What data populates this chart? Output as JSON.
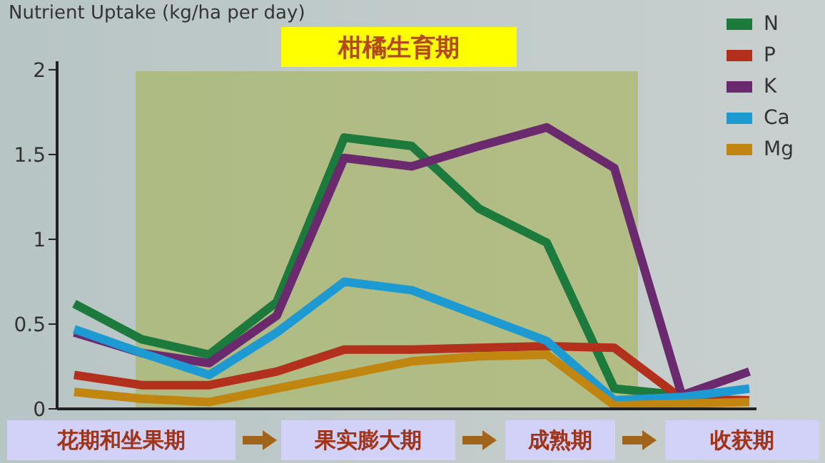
{
  "chart_data": {
    "type": "line",
    "title": "柑橘生育期",
    "ylabel": "Nutrient Uptake (kg/ha per day)",
    "categories": [
      null,
      null,
      null,
      null,
      null,
      null,
      null,
      null,
      null,
      null,
      null
    ],
    "series": [
      {
        "name": "N",
        "color": "#1b7a3c",
        "values": [
          0.62,
          0.41,
          0.32,
          0.63,
          1.6,
          1.55,
          1.18,
          0.98,
          0.12,
          0.08,
          null
        ]
      },
      {
        "name": "P",
        "color": "#b3301c",
        "values": [
          0.2,
          0.14,
          0.14,
          0.22,
          0.35,
          0.35,
          0.36,
          0.37,
          0.36,
          0.06,
          0.05
        ]
      },
      {
        "name": "K",
        "color": "#6b2a6e",
        "values": [
          0.45,
          0.33,
          0.27,
          0.55,
          1.48,
          1.43,
          1.55,
          1.66,
          1.42,
          0.08,
          0.22
        ]
      },
      {
        "name": "Ca",
        "color": "#1e9ad2",
        "values": [
          0.47,
          0.33,
          0.2,
          0.45,
          0.75,
          0.7,
          0.55,
          0.4,
          0.05,
          0.07,
          0.12
        ]
      },
      {
        "name": "Mg",
        "color": "#c0860f",
        "values": [
          0.1,
          0.06,
          0.04,
          0.12,
          0.2,
          0.28,
          0.31,
          0.32,
          0.02,
          0.03,
          0.04
        ]
      }
    ],
    "ylim": [
      0,
      2.05
    ],
    "yticks": [
      0,
      0.5,
      1,
      1.5,
      2
    ],
    "tick_labels": "y",
    "grid": false,
    "legend": "top right",
    "marker": "none",
    "line_style": "solid",
    "annotations": [
      "花期和坐果期",
      "果实膨大期",
      "成熟期",
      "收获期"
    ]
  }
}
